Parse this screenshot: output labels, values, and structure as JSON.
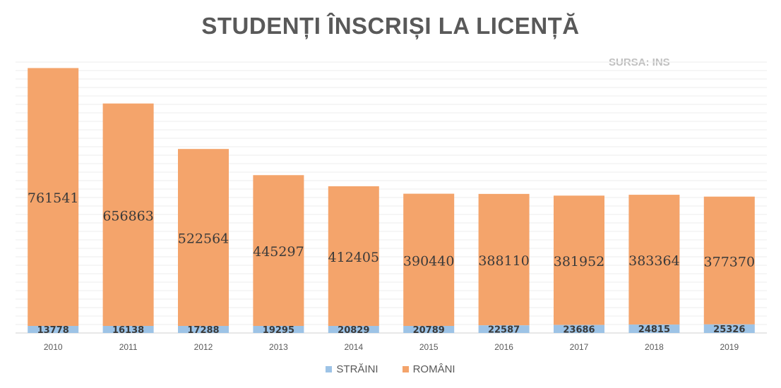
{
  "chart_data": {
    "type": "bar",
    "stacked": true,
    "title": "STUDENȚI ÎNSCRIȘI LA LICENȚĂ",
    "source": "SURSA: INS",
    "categories": [
      "2010",
      "2011",
      "2012",
      "2013",
      "2014",
      "2015",
      "2016",
      "2017",
      "2018",
      "2019"
    ],
    "series": [
      {
        "name": "STRĂINI",
        "color": "#9dc3e6",
        "values": [
          13778,
          16138,
          17288,
          19295,
          20829,
          20789,
          22587,
          23686,
          24815,
          25326
        ]
      },
      {
        "name": "ROMÂNI",
        "color": "#f4a46b",
        "values": [
          761541,
          656863,
          522564,
          445297,
          412405,
          390440,
          388110,
          381952,
          383364,
          377370
        ]
      }
    ],
    "ylim": [
      0,
      800000
    ],
    "grid": true,
    "legend_position": "bottom"
  }
}
